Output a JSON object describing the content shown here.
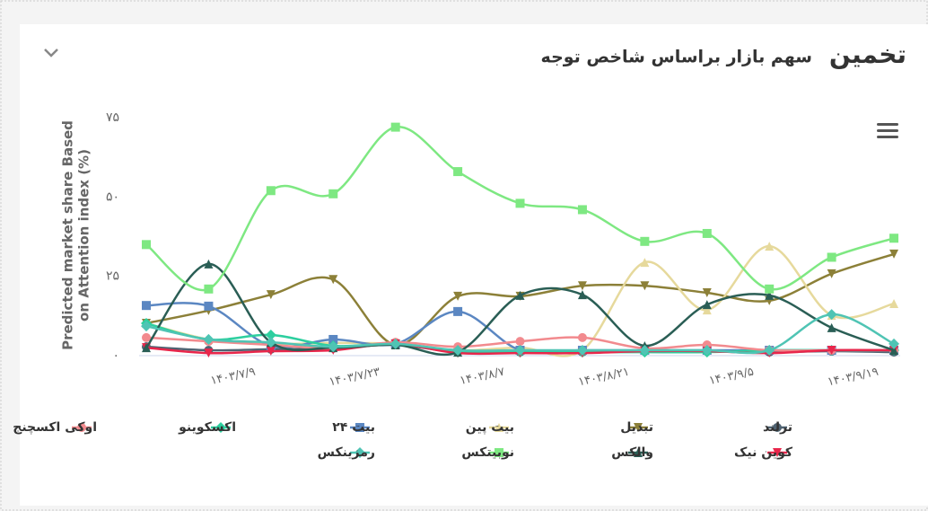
{
  "chart_data": {
    "type": "line",
    "title": "تخمین",
    "subtitle": "سهم بازار براساس شاخص توجه",
    "y_label": [
      "Predicted market share Based",
      "on Attention index (%)"
    ],
    "categories": [
      null,
      "۱۴۰۳/۷/۹",
      null,
      "۱۴۰۳/۷/۲۳",
      null,
      "۱۴۰۳/۸/۷",
      null,
      "۱۴۰۳/۸/۲۱",
      null,
      "۱۴۰۳/۹/۵",
      null,
      "۱۴۰۳/۹/۱۹",
      null
    ],
    "ylim": [
      0,
      75
    ],
    "yticks": [
      {
        "value": 0,
        "label": "۰"
      },
      {
        "value": 25,
        "label": "۲۵"
      },
      {
        "value": 50,
        "label": "۵۰"
      },
      {
        "value": 75,
        "label": "۷۵"
      }
    ],
    "grid": false,
    "series": [
      {
        "name": "ترلند",
        "color": "#4f6372",
        "symbol": "circle",
        "values": [
          2.8,
          1.7,
          2,
          2.3,
          3.4,
          1.1,
          1.1,
          1.1,
          1.4,
          1.4,
          1.1,
          1.4,
          1.1
        ]
      },
      {
        "name": "تبدیل",
        "color": "#8c8038",
        "symbol": "triangle-down",
        "values": [
          10.2,
          14.2,
          19.2,
          24,
          3.4,
          18.7,
          18.7,
          22,
          22,
          19.8,
          17.3,
          25.8,
          32
        ]
      },
      {
        "name": "بیت پین",
        "color": "#e6d99c",
        "symbol": "triangle",
        "values": [
          10.2,
          5.1,
          3.7,
          4,
          3.7,
          1.7,
          2.5,
          1.7,
          29.4,
          14.4,
          34.5,
          12.7,
          16.4
        ]
      },
      {
        "name": "بیت ۲۴",
        "color": "#5b87c2",
        "symbol": "square",
        "values": [
          15.8,
          15.6,
          3.1,
          5.1,
          3.7,
          13.9,
          1.7,
          1.7,
          1.7,
          1.7,
          1.7,
          1.7,
          1.7
        ]
      },
      {
        "name": "اکسکوینو",
        "color": "#2dcf9f",
        "symbol": "diamond",
        "values": [
          10.2,
          5.1,
          6.5,
          3.1,
          3.7,
          1.1,
          1.1,
          1.1,
          1.1,
          1.1,
          1.7,
          1.7,
          1.7
        ]
      },
      {
        "name": "اوکی اکسچنج",
        "color": "#f28a8e",
        "symbol": "circle",
        "values": [
          5.7,
          4.5,
          3.4,
          2.3,
          4.2,
          2.8,
          4.5,
          5.7,
          2.3,
          3.4,
          1.7,
          1.7,
          1.7
        ]
      },
      {
        "name": "کوین نیک",
        "color": "#e8264b",
        "symbol": "triangle-down",
        "values": [
          2.5,
          0.8,
          1.4,
          1.7,
          3.7,
          0.8,
          0.8,
          0.8,
          1.4,
          1.4,
          0.8,
          1.7,
          1.7
        ]
      },
      {
        "name": "والکس",
        "color": "#2a5e55",
        "symbol": "triangle",
        "values": [
          2.5,
          28.9,
          4.2,
          2.5,
          3.4,
          1.1,
          19,
          19.2,
          3.1,
          16.1,
          19,
          8.8,
          1.7
        ]
      },
      {
        "name": "نوبیتکس",
        "color": "#7ee882",
        "symbol": "square",
        "values": [
          35,
          21,
          52,
          51,
          72,
          58,
          48,
          46,
          36,
          38.5,
          21,
          31,
          37
        ]
      },
      {
        "name": "رمزینکس",
        "color": "#4fc4b4",
        "symbol": "diamond",
        "values": [
          9.3,
          5.1,
          4.2,
          2.8,
          3.7,
          1.7,
          1.7,
          1.7,
          1.7,
          1.7,
          1.7,
          13,
          3.7
        ]
      }
    ]
  }
}
